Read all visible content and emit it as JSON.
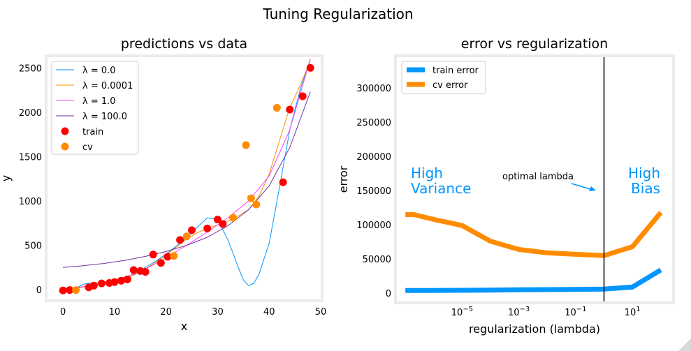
{
  "suptitle": "Tuning Regularization",
  "chart_data": [
    {
      "type": "line+scatter",
      "title": "predictions vs data",
      "xlabel": "x",
      "ylabel": "y",
      "xlim": [
        -3,
        50
      ],
      "ylim": [
        -110,
        2620
      ],
      "xticks": [
        0,
        10,
        20,
        30,
        40,
        50
      ],
      "yticks": [
        0,
        500,
        1000,
        1500,
        2000,
        2500
      ],
      "grid": false,
      "legend_position": "top-left",
      "legend": [
        "λ = 0.0",
        "λ = 0.0001",
        "λ = 1.0",
        "λ = 100.0",
        "train",
        "cv"
      ],
      "series": [
        {
          "name": "λ = 0.0",
          "kind": "line",
          "color": "#0096ff",
          "x": [
            0,
            2,
            4,
            6,
            8,
            10,
            12,
            14,
            16,
            18,
            20,
            22,
            24,
            26,
            28,
            30,
            32,
            33,
            34,
            35,
            36,
            37,
            38,
            40,
            42,
            44,
            46,
            48
          ],
          "y": [
            -10,
            0,
            60,
            80,
            70,
            80,
            110,
            180,
            250,
            320,
            400,
            490,
            580,
            700,
            810,
            790,
            560,
            410,
            250,
            110,
            45,
            70,
            170,
            520,
            1150,
            1800,
            2250,
            2600
          ]
        },
        {
          "name": "λ = 0.0001",
          "kind": "line",
          "color": "#ff8c00",
          "x": [
            0,
            2,
            4,
            6,
            8,
            10,
            12,
            14,
            16,
            18,
            20,
            22,
            24,
            26,
            28,
            30,
            32,
            34,
            36,
            38,
            40,
            42,
            44,
            46,
            48
          ],
          "y": [
            -10,
            10,
            30,
            55,
            75,
            95,
            125,
            170,
            230,
            310,
            390,
            480,
            570,
            640,
            690,
            730,
            770,
            830,
            900,
            1050,
            1300,
            1680,
            2050,
            2300,
            2580
          ]
        },
        {
          "name": "λ = 1.0",
          "kind": "line",
          "color": "#ff40ff",
          "x": [
            0,
            4,
            8,
            12,
            16,
            20,
            24,
            28,
            32,
            36,
            40,
            44,
            48
          ],
          "y": [
            0,
            35,
            80,
            140,
            230,
            360,
            500,
            650,
            810,
            1000,
            1280,
            1800,
            2600
          ]
        },
        {
          "name": "λ = 100.0",
          "kind": "line",
          "color": "#7030a0",
          "x": [
            0,
            4,
            8,
            12,
            16,
            20,
            24,
            28,
            32,
            36,
            40,
            44,
            48
          ],
          "y": [
            250,
            270,
            295,
            330,
            375,
            430,
            500,
            590,
            720,
            900,
            1170,
            1600,
            2230
          ]
        },
        {
          "name": "train",
          "kind": "scatter",
          "color": "#ff0000",
          "x": [
            0,
            1.3,
            5,
            6,
            7.5,
            9,
            10,
            11.3,
            12.5,
            13.7,
            15,
            16,
            17.5,
            19,
            20.3,
            22.7,
            25,
            28,
            30,
            31,
            42.7,
            44,
            46.5,
            48
          ],
          "y": [
            -10,
            -5,
            25,
            45,
            70,
            75,
            85,
            100,
            115,
            220,
            210,
            200,
            395,
            300,
            370,
            560,
            670,
            690,
            790,
            740,
            1210,
            2030,
            2180,
            2500
          ]
        },
        {
          "name": "cv",
          "kind": "scatter",
          "color": "#ff8c00",
          "x": [
            2.5,
            21.5,
            24,
            33,
            35.5,
            36.5,
            37.5,
            41.5
          ],
          "y": [
            -5,
            380,
            600,
            810,
            1630,
            1030,
            960,
            2050
          ]
        }
      ]
    },
    {
      "type": "line",
      "title": "error vs regularization",
      "xlabel": "regularization (lambda)",
      "ylabel": "error",
      "xscale": "log",
      "xlim_exp": [
        -7.3,
        2.4
      ],
      "ylim": [
        -12000,
        345000
      ],
      "xticks_exp": [
        -5,
        -3,
        -1,
        1
      ],
      "yticks": [
        0,
        50000,
        100000,
        150000,
        200000,
        250000,
        300000
      ],
      "grid": false,
      "legend_position": "top-left",
      "legend": [
        "train error",
        "cv error"
      ],
      "series": [
        {
          "name": "train error",
          "kind": "line",
          "color": "#0096ff",
          "x_exp": [
            -7,
            -6,
            -5,
            -4,
            -3,
            -2,
            -1,
            0,
            1,
            2
          ],
          "y": [
            4000,
            4100,
            4300,
            4600,
            5000,
            5300,
            5600,
            6200,
            9000,
            34000
          ]
        },
        {
          "name": "cv error",
          "kind": "line",
          "color": "#ff8c00",
          "x_exp": [
            -7,
            -6.7,
            -6,
            -5,
            -4,
            -3,
            -2,
            -1,
            0,
            1,
            2
          ],
          "y": [
            115000,
            115000,
            108000,
            99000,
            76000,
            64000,
            59000,
            57000,
            55000,
            68000,
            118000
          ]
        }
      ],
      "vline_x_exp": 0,
      "annotations": [
        {
          "text": "High\nVariance",
          "color": "#0096ff",
          "position": "left"
        },
        {
          "text": "High\nBias",
          "color": "#0096ff",
          "position": "right"
        },
        {
          "text": "optimal lambda",
          "color": "#000000",
          "arrow_color": "#0096ff"
        }
      ]
    }
  ]
}
